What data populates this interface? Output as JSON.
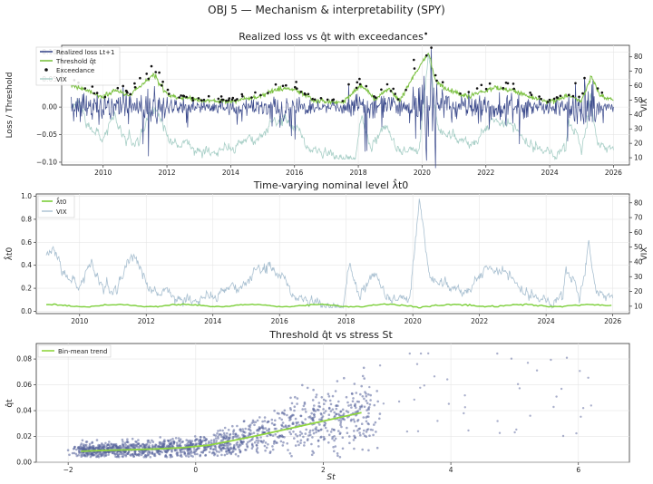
{
  "figure_title": "OBJ 5 — Mechanism & interpretability (SPY)",
  "colors": {
    "loss": "#3b4a8c",
    "threshold": "#7cc142",
    "exceedance": "#111111",
    "vix_top": "#a8cfc7",
    "vix_mid": "#a9c0d1",
    "nominal": "#7ccf3a",
    "scatter": "#56629a",
    "trend": "#8fd53e"
  },
  "chart_data": [
    {
      "type": "line",
      "title": "Realized loss vs q̂t with exceedances",
      "ylabel": "Loss / Threshold",
      "y2label": "VIX",
      "xlim": [
        2008.7,
        2026.5
      ],
      "ylim": [
        -0.105,
        0.112
      ],
      "y2lim": [
        5,
        88
      ],
      "xticks": [
        "2010",
        "2012",
        "2014",
        "2016",
        "2018",
        "2020",
        "2022",
        "2024",
        "2026"
      ],
      "yticks": [
        "−0.10",
        "−0.05",
        "0.00",
        "0.05",
        "0.10"
      ],
      "y2ticks": [
        "10",
        "20",
        "30",
        "40",
        "50",
        "60",
        "70",
        "80"
      ],
      "legend": [
        "Realized loss Lt+1",
        "Threshold q̂t",
        "Exceedance",
        "VIX"
      ],
      "legend_position": "top-left",
      "vix_anchors": [
        [
          2009.0,
          45
        ],
        [
          2009.2,
          50
        ],
        [
          2009.5,
          32
        ],
        [
          2010.0,
          22
        ],
        [
          2010.35,
          40
        ],
        [
          2010.6,
          25
        ],
        [
          2011.0,
          18
        ],
        [
          2011.6,
          44
        ],
        [
          2012.0,
          25
        ],
        [
          2012.5,
          18
        ],
        [
          2013.0,
          15
        ],
        [
          2014.0,
          14
        ],
        [
          2014.8,
          24
        ],
        [
          2015.6,
          40
        ],
        [
          2016.1,
          28
        ],
        [
          2016.6,
          14
        ],
        [
          2017.0,
          11
        ],
        [
          2017.9,
          10
        ],
        [
          2018.1,
          37
        ],
        [
          2018.4,
          17
        ],
        [
          2018.9,
          34
        ],
        [
          2019.2,
          16
        ],
        [
          2019.9,
          13
        ],
        [
          2020.2,
          82
        ],
        [
          2020.5,
          30
        ],
        [
          2021.0,
          24
        ],
        [
          2021.6,
          18
        ],
        [
          2022.2,
          35
        ],
        [
          2022.8,
          30
        ],
        [
          2023.3,
          20
        ],
        [
          2023.9,
          13
        ],
        [
          2024.5,
          14
        ],
        [
          2024.6,
          38
        ],
        [
          2025.0,
          16
        ],
        [
          2025.28,
          52
        ],
        [
          2025.5,
          18
        ],
        [
          2026.0,
          16
        ]
      ],
      "loss_anchors": [
        [
          2009.0,
          0.035
        ],
        [
          2009.6,
          0.025
        ],
        [
          2010.0,
          0.015
        ],
        [
          2010.4,
          0.03
        ],
        [
          2011.0,
          0.012
        ],
        [
          2011.6,
          0.045
        ],
        [
          2012.0,
          0.015
        ],
        [
          2013.0,
          0.01
        ],
        [
          2014.0,
          0.009
        ],
        [
          2015.6,
          0.025
        ],
        [
          2016.1,
          0.02
        ],
        [
          2017.0,
          0.006
        ],
        [
          2018.1,
          0.03
        ],
        [
          2018.9,
          0.022
        ],
        [
          2019.5,
          0.01
        ],
        [
          2020.2,
          0.09
        ],
        [
          2020.6,
          0.025
        ],
        [
          2021.0,
          0.018
        ],
        [
          2022.4,
          0.03
        ],
        [
          2023.5,
          0.013
        ],
        [
          2024.6,
          0.02
        ],
        [
          2025.28,
          0.045
        ],
        [
          2025.6,
          0.012
        ],
        [
          2026.0,
          0.01
        ]
      ],
      "threshold_anchors": [
        [
          2009.0,
          0.04
        ],
        [
          2009.5,
          0.03
        ],
        [
          2010.0,
          0.018
        ],
        [
          2010.4,
          0.032
        ],
        [
          2010.8,
          0.02
        ],
        [
          2011.6,
          0.06
        ],
        [
          2012.0,
          0.022
        ],
        [
          2013.0,
          0.012
        ],
        [
          2014.0,
          0.01
        ],
        [
          2014.8,
          0.018
        ],
        [
          2015.6,
          0.035
        ],
        [
          2016.1,
          0.03
        ],
        [
          2016.6,
          0.012
        ],
        [
          2017.5,
          0.008
        ],
        [
          2018.1,
          0.04
        ],
        [
          2018.5,
          0.015
        ],
        [
          2018.95,
          0.033
        ],
        [
          2019.3,
          0.013
        ],
        [
          2020.2,
          0.1
        ],
        [
          2020.4,
          0.05
        ],
        [
          2020.8,
          0.03
        ],
        [
          2021.5,
          0.02
        ],
        [
          2022.3,
          0.035
        ],
        [
          2022.8,
          0.03
        ],
        [
          2023.4,
          0.018
        ],
        [
          2024.0,
          0.01
        ],
        [
          2024.6,
          0.02
        ],
        [
          2025.0,
          0.012
        ],
        [
          2025.3,
          0.055
        ],
        [
          2025.6,
          0.02
        ],
        [
          2026.0,
          0.013
        ]
      ]
    },
    {
      "type": "line",
      "title": "Time-varying nominal level λ̂t0",
      "ylabel": "λ̂t0",
      "y2label": "VIX",
      "xlim": [
        2008.7,
        2026.5
      ],
      "ylim": [
        -0.02,
        1.02
      ],
      "y2lim": [
        5,
        86
      ],
      "xticks": [
        "2010",
        "2012",
        "2014",
        "2016",
        "2018",
        "2020",
        "2022",
        "2024",
        "2026"
      ],
      "yticks": [
        "0.0",
        "0.2",
        "0.4",
        "0.6",
        "0.8",
        "1.0"
      ],
      "y2ticks": [
        "10",
        "20",
        "30",
        "40",
        "50",
        "60",
        "70",
        "80"
      ],
      "legend": [
        "λ̂t0",
        "VIX"
      ],
      "legend_position": "top-left",
      "nominal_level": 0.05
    },
    {
      "type": "scatter",
      "title": "Threshold q̂t vs stress St",
      "xlabel": "St",
      "ylabel": "q̂t",
      "xlim": [
        -2.5,
        6.8
      ],
      "ylim": [
        0.0,
        0.092
      ],
      "xticks": [
        "−2",
        "0",
        "2",
        "4",
        "6"
      ],
      "yticks": [
        "0.00",
        "0.02",
        "0.04",
        "0.06",
        "0.08"
      ],
      "legend": [
        "Bin-mean trend"
      ],
      "legend_position": "top-left",
      "trend": [
        [
          -1.8,
          0.0085
        ],
        [
          -1.4,
          0.0093
        ],
        [
          -1.0,
          0.0097
        ],
        [
          -0.6,
          0.0103
        ],
        [
          -0.2,
          0.0113
        ],
        [
          0.2,
          0.0132
        ],
        [
          0.55,
          0.0165
        ],
        [
          1.0,
          0.021
        ],
        [
          1.6,
          0.0275
        ],
        [
          2.1,
          0.033
        ],
        [
          2.6,
          0.0385
        ]
      ]
    }
  ]
}
